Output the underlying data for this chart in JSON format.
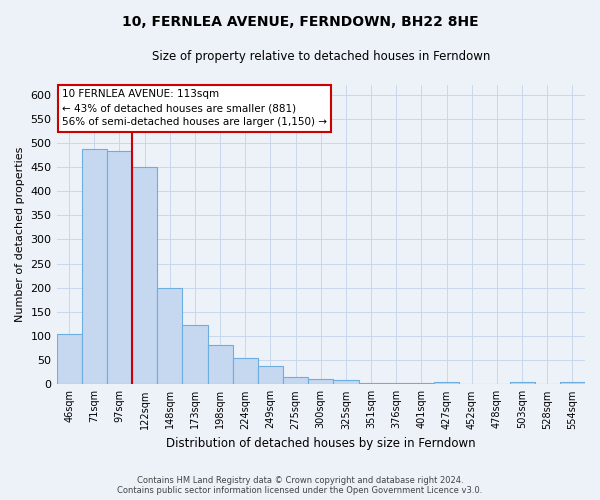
{
  "title": "10, FERNLEA AVENUE, FERNDOWN, BH22 8HE",
  "subtitle": "Size of property relative to detached houses in Ferndown",
  "xlabel": "Distribution of detached houses by size in Ferndown",
  "ylabel": "Number of detached properties",
  "footer_line1": "Contains HM Land Registry data © Crown copyright and database right 2024.",
  "footer_line2": "Contains public sector information licensed under the Open Government Licence v3.0.",
  "categories": [
    "46sqm",
    "71sqm",
    "97sqm",
    "122sqm",
    "148sqm",
    "173sqm",
    "198sqm",
    "224sqm",
    "249sqm",
    "275sqm",
    "300sqm",
    "325sqm",
    "351sqm",
    "376sqm",
    "401sqm",
    "427sqm",
    "452sqm",
    "478sqm",
    "503sqm",
    "528sqm",
    "554sqm"
  ],
  "values": [
    105,
    487,
    483,
    450,
    200,
    122,
    82,
    55,
    38,
    15,
    10,
    8,
    2,
    2,
    2,
    5,
    0,
    0,
    5,
    0,
    5
  ],
  "bar_color": "#c5d8f0",
  "bar_edge_color": "#6daee0",
  "grid_color": "#c8d8ec",
  "annotation_text": "10 FERNLEA AVENUE: 113sqm\n← 43% of detached houses are smaller (881)\n56% of semi-detached houses are larger (1,150) →",
  "annotation_box_color": "#ffffff",
  "annotation_box_edge_color": "#cc0000",
  "red_line_color": "#cc0000",
  "red_line_x": 2.5,
  "ylim": [
    0,
    620
  ],
  "yticks": [
    0,
    50,
    100,
    150,
    200,
    250,
    300,
    350,
    400,
    450,
    500,
    550,
    600
  ],
  "background_color": "#edf1f8",
  "plot_background_color": "#edf1f8"
}
